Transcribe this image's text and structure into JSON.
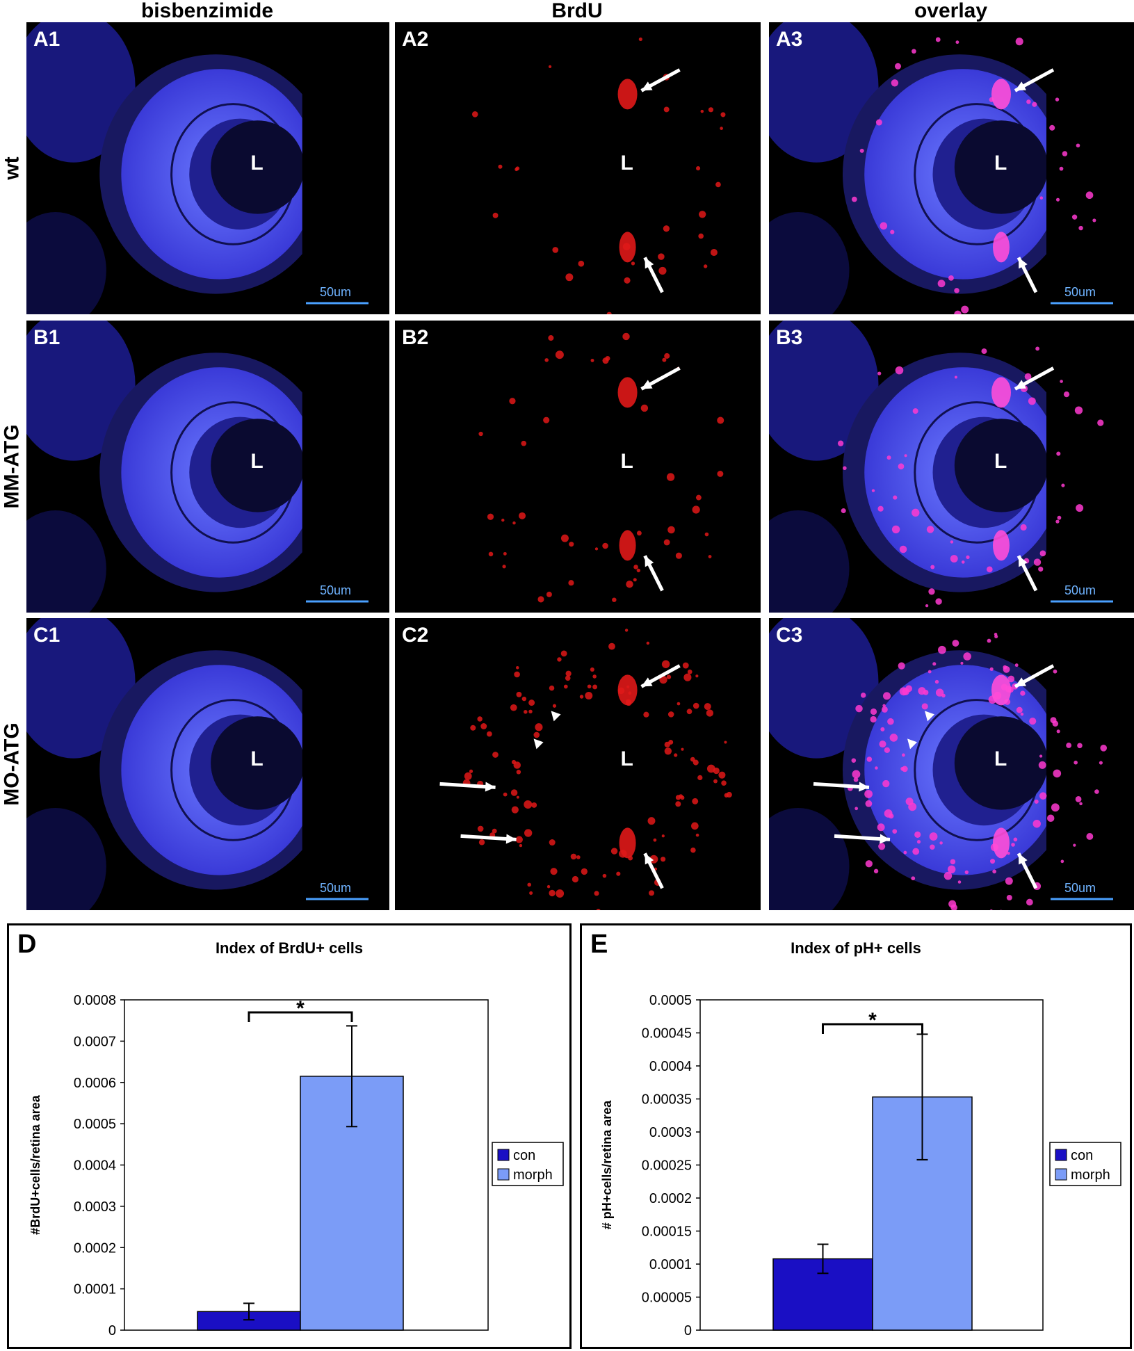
{
  "columns": [
    "bisbenzimide",
    "BrdU",
    "overlay"
  ],
  "rows": [
    "wt",
    "MM-ATG",
    "MO-ATG"
  ],
  "panels": [
    {
      "label": "A1",
      "kind": "blue",
      "lens": "L",
      "scale": "50um",
      "arrows": 0
    },
    {
      "label": "A2",
      "kind": "red",
      "lens": "L",
      "scale": "",
      "arrows": 2
    },
    {
      "label": "A3",
      "kind": "overlay",
      "lens": "L",
      "scale": "50um",
      "arrows": 2
    },
    {
      "label": "B1",
      "kind": "blue",
      "lens": "L",
      "scale": "50um",
      "arrows": 0
    },
    {
      "label": "B2",
      "kind": "red",
      "lens": "L",
      "scale": "",
      "arrows": 2
    },
    {
      "label": "B3",
      "kind": "overlay",
      "lens": "L",
      "scale": "50um",
      "arrows": 2
    },
    {
      "label": "C1",
      "kind": "blue",
      "lens": "L",
      "scale": "50um",
      "arrows": 0
    },
    {
      "label": "C2",
      "kind": "red",
      "lens": "L",
      "scale": "",
      "arrows": 4
    },
    {
      "label": "C3",
      "kind": "overlay",
      "lens": "L",
      "scale": "50um",
      "arrows": 4
    }
  ],
  "colors": {
    "con": "#1a0fc4",
    "morph": "#7b9cf7",
    "nuclear": "#3a3aff",
    "brdu": "#e01818"
  },
  "chart_data": [
    {
      "letter": "D",
      "type": "bar",
      "title": "Index of BrdU+ cells",
      "ylabel": "#BrdU+cells/retina area",
      "xlabel": "",
      "ylim": [
        0,
        0.0008
      ],
      "yticks": [
        "0",
        "0.0001",
        "0.0002",
        "0.0003",
        "0.0004",
        "0.0005",
        "0.0006",
        "0.0007",
        "0.0008"
      ],
      "series": [
        {
          "name": "con",
          "value": 4.5e-05,
          "error": 2e-05
        },
        {
          "name": "morph",
          "value": 0.000615,
          "error": 0.000122
        }
      ],
      "significance": "*",
      "legend_position": "right"
    },
    {
      "letter": "E",
      "type": "bar",
      "title": "Index of pH+ cells",
      "ylabel": "# pH+cells/retina area",
      "xlabel": "",
      "ylim": [
        0,
        0.0005
      ],
      "yticks": [
        "0",
        "0.00005",
        "0.0001",
        "0.00015",
        "0.0002",
        "0.00025",
        "0.0003",
        "0.00035",
        "0.0004",
        "0.00045",
        "0.0005"
      ],
      "series": [
        {
          "name": "con",
          "value": 0.000108,
          "error": 2.2e-05
        },
        {
          "name": "morph",
          "value": 0.000353,
          "error": 9.5e-05
        }
      ],
      "significance": "*",
      "legend_position": "right"
    }
  ]
}
